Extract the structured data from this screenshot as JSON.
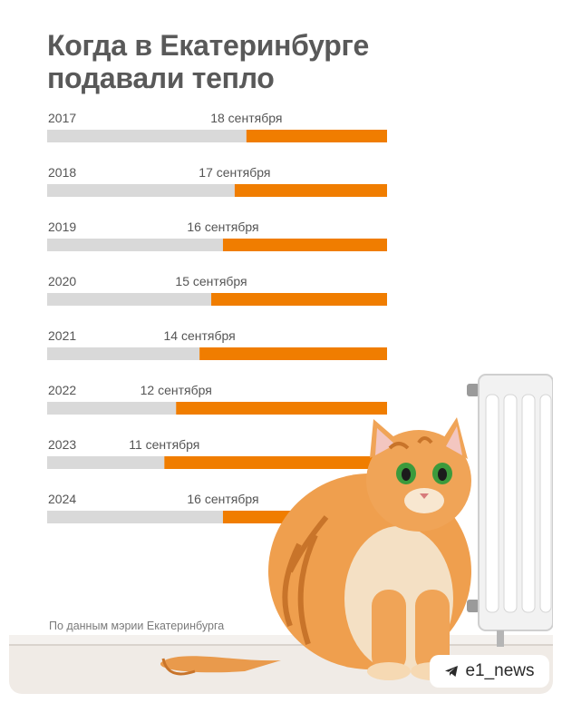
{
  "title_line1": "Когда в Екатеринбурге",
  "title_line2": "подавали тепло",
  "source": "По данным мэрии Екатеринбурга",
  "badge": {
    "text": "e1_news",
    "icon": "telegram-icon"
  },
  "colors": {
    "elapsed": "#d9d9d9",
    "heating": "#f07d00",
    "title": "#595959"
  },
  "chart_data": {
    "type": "bar",
    "orientation": "horizontal",
    "categories": [
      "2017",
      "2018",
      "2019",
      "2020",
      "2021",
      "2022",
      "2023",
      "2024"
    ],
    "labels": [
      "18 сентября",
      "17 сентября",
      "16 сентября",
      "15 сентября",
      "14 сентября",
      "12 сентября",
      "11 сентября",
      "16 сентября"
    ],
    "values": [
      18,
      17,
      16,
      15,
      14,
      12,
      11,
      16
    ],
    "xlim": [
      1,
      30
    ],
    "legend": "none",
    "grid": false
  }
}
